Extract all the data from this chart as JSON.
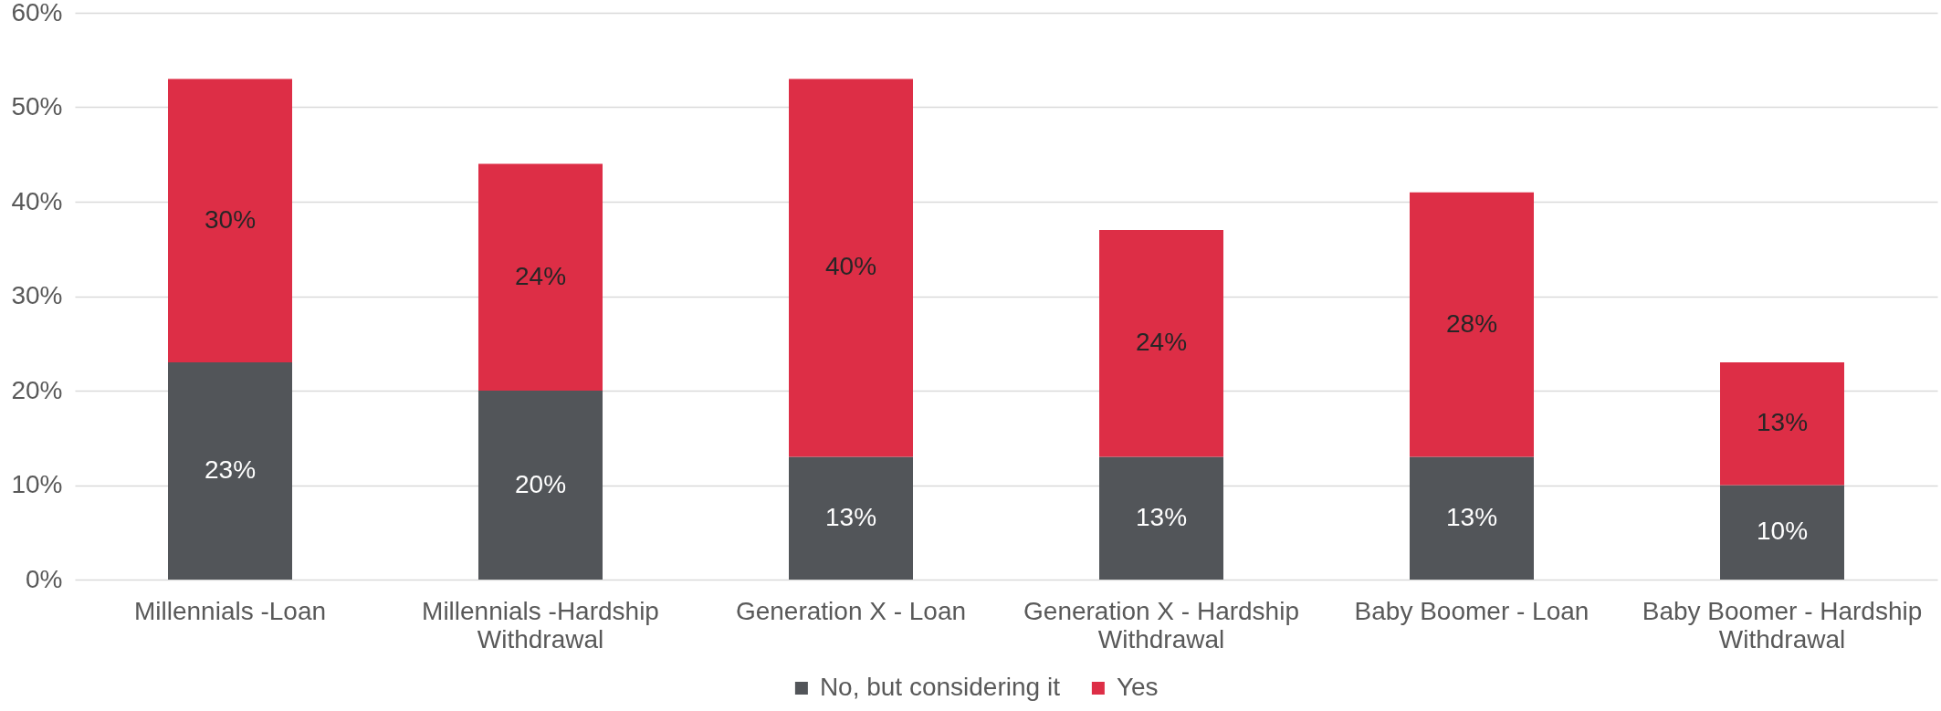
{
  "chart_data": {
    "type": "bar",
    "stacked": true,
    "categories": [
      "Millennials -Loan",
      "Millennials -Hardship Withdrawal",
      "Generation X - Loan",
      "Generation X - Hardship Withdrawal",
      "Baby Boomer - Loan",
      "Baby Boomer - Hardship Withdrawal"
    ],
    "series": [
      {
        "name": "No, but considering it",
        "color": "#525559",
        "values": [
          23,
          20,
          13,
          13,
          13,
          10
        ],
        "value_labels": [
          "23%",
          "20%",
          "13%",
          "13%",
          "13%",
          "10%"
        ]
      },
      {
        "name": "Yes",
        "color": "#dd2e46",
        "values": [
          30,
          24,
          40,
          24,
          28,
          13
        ],
        "value_labels": [
          "30%",
          "24%",
          "40%",
          "24%",
          "28%",
          "13%"
        ]
      }
    ],
    "ylim": [
      0,
      60
    ],
    "yticks": [
      {
        "value": 0,
        "label": "0%"
      },
      {
        "value": 10,
        "label": "10%"
      },
      {
        "value": 20,
        "label": "20%"
      },
      {
        "value": 30,
        "label": "30%"
      },
      {
        "value": 40,
        "label": "40%"
      },
      {
        "value": 50,
        "label": "50%"
      },
      {
        "value": 60,
        "label": "60%"
      }
    ],
    "grid": "y",
    "legend": "bottom"
  }
}
